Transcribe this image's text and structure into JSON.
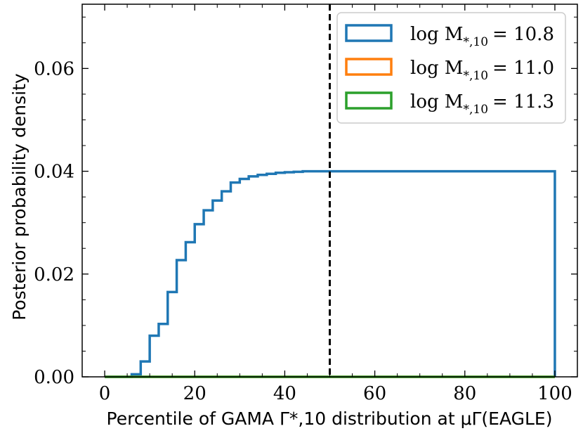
{
  "chart_data": {
    "type": "histogram",
    "xlabel": "Percentile of GAMA Γ*,10 distribution at μΓ(EAGLE)",
    "ylabel": "Posterior probability density",
    "xlim": [
      -5,
      105
    ],
    "ylim": [
      0,
      0.0725
    ],
    "x_ticks": [
      0,
      20,
      40,
      60,
      80,
      100
    ],
    "y_ticks": [
      0.0,
      0.02,
      0.04,
      0.06
    ],
    "x_tick_labels": [
      "0",
      "20",
      "40",
      "60",
      "80",
      "100"
    ],
    "y_tick_labels": [
      "0.00",
      "0.02",
      "0.04",
      "0.06"
    ],
    "vline": {
      "x": 50,
      "style": "dashed",
      "color": "#000000"
    },
    "bin_width": 2,
    "bin_start": 0,
    "grid": false,
    "legend_position": "top-right",
    "series": [
      {
        "name": "log M*,10 = 10.8",
        "legend_main": "log M",
        "legend_sub": "*,10",
        "legend_value": "= 10.8",
        "color": "#1f77b4",
        "values": [
          0,
          0,
          0,
          0.0005,
          0.003,
          0.008,
          0.0103,
          0.0165,
          0.0227,
          0.0262,
          0.0297,
          0.0324,
          0.0343,
          0.0361,
          0.0378,
          0.0385,
          0.039,
          0.0393,
          0.0395,
          0.0397,
          0.0398,
          0.0399,
          0.04,
          0.04,
          0.04,
          0.04,
          0.04,
          0.04,
          0.04,
          0.04,
          0.04,
          0.04,
          0.04,
          0.04,
          0.04,
          0.04,
          0.04,
          0.04,
          0.04,
          0.04,
          0.04,
          0.04,
          0.04,
          0.04,
          0.04,
          0.04,
          0.04,
          0.04,
          0.04,
          0.04
        ]
      },
      {
        "name": "log M*,10 = 11.0",
        "legend_main": "log M",
        "legend_sub": "*,10",
        "legend_value": "= 11.0",
        "color": "#ff7f0e",
        "values": [
          0,
          0,
          0,
          0,
          0,
          0,
          0,
          0,
          0,
          0,
          0,
          0,
          0,
          0,
          0,
          0,
          0,
          0,
          0,
          0,
          0,
          0,
          0,
          0,
          0,
          0,
          0,
          0,
          0,
          0,
          0,
          0,
          0,
          0,
          0,
          0,
          0,
          0,
          0,
          0,
          0,
          0,
          0,
          0,
          0,
          0,
          0,
          0,
          0,
          0
        ]
      },
      {
        "name": "log M*,10 = 11.3",
        "legend_main": "log M",
        "legend_sub": "*,10",
        "legend_value": "= 11.3",
        "color": "#2ca02c",
        "values": [
          0,
          0,
          0,
          0,
          0,
          0,
          0,
          0,
          0,
          0,
          0,
          0,
          0,
          0,
          0,
          0,
          0,
          0,
          0,
          0,
          0,
          0,
          0,
          0,
          0,
          0,
          0,
          0,
          0,
          0,
          0,
          0,
          0,
          0,
          0,
          0,
          0,
          0,
          0,
          0,
          0,
          0,
          0,
          0,
          0,
          0,
          0,
          0,
          0,
          0
        ]
      }
    ]
  }
}
